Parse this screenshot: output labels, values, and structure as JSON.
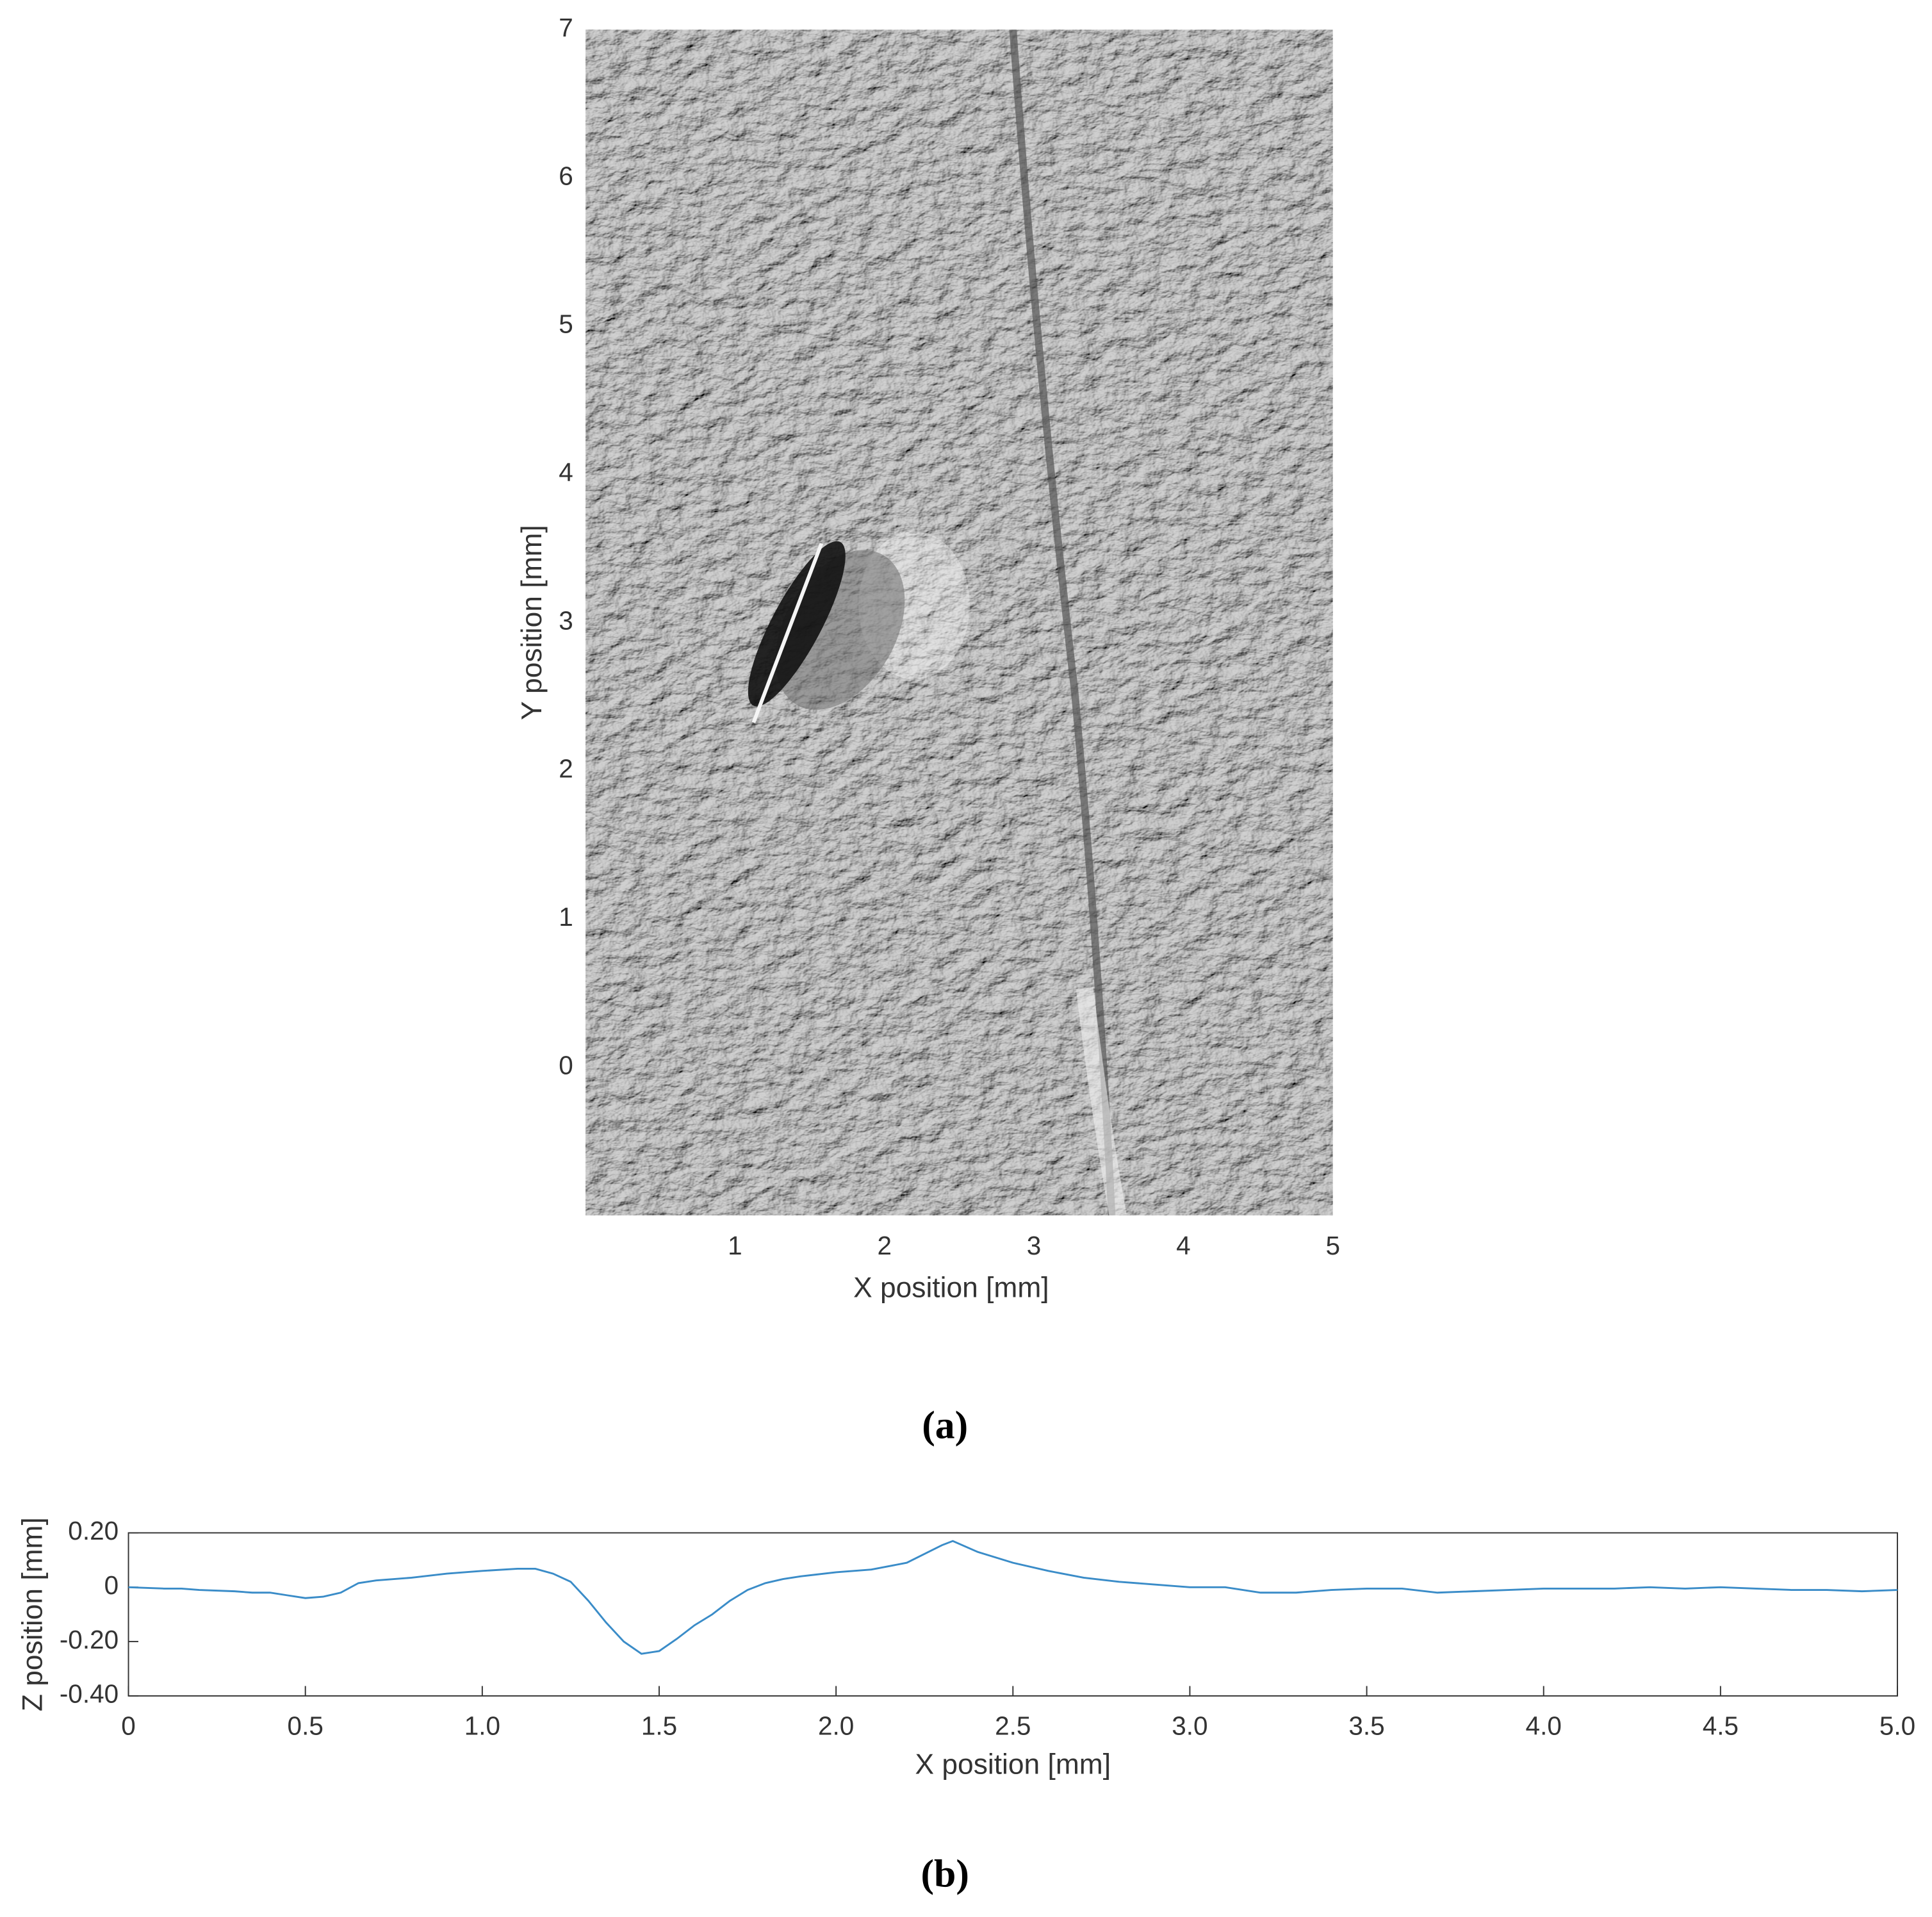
{
  "chart_data": [
    {
      "type": "image",
      "xlabel": "X position [mm]",
      "ylabel": "Y position [mm]",
      "caption": "(a)",
      "xlim": [
        0,
        5
      ],
      "ylim": [
        -1,
        7
      ],
      "xticks": [
        1,
        2,
        3,
        4,
        5
      ],
      "yticks": [
        0,
        1,
        2,
        3,
        4,
        5,
        6,
        7
      ]
    },
    {
      "type": "line",
      "xlabel": "X position [mm]",
      "ylabel": "Z position [mm]",
      "caption": "(b)",
      "color": "#3a8cc8",
      "xlim": [
        0,
        5
      ],
      "ylim": [
        -0.4,
        0.2
      ],
      "xticks": [
        0,
        0.5,
        {
          "value": 1,
          "label": "1.0"
        },
        1.5,
        {
          "value": 2,
          "label": "2.0"
        },
        2.5,
        {
          "value": 3,
          "label": "3.0"
        },
        3.5,
        {
          "value": 4,
          "label": "4.0"
        },
        4.5,
        {
          "value": 5,
          "label": "5.0"
        }
      ],
      "yticks": [
        {
          "value": -0.4,
          "label": "-0.40"
        },
        {
          "value": -0.2,
          "label": "-0.20"
        },
        0,
        {
          "value": 0.2,
          "label": "0.20"
        }
      ],
      "x": [
        0,
        0.1,
        0.15,
        0.2,
        0.3,
        0.35,
        0.4,
        0.45,
        0.5,
        0.55,
        0.6,
        0.65,
        0.7,
        0.8,
        0.9,
        1.0,
        1.1,
        1.15,
        1.2,
        1.25,
        1.3,
        1.35,
        1.4,
        1.45,
        1.5,
        1.55,
        1.6,
        1.65,
        1.7,
        1.75,
        1.8,
        1.85,
        1.9,
        2.0,
        2.1,
        2.2,
        2.3,
        2.33,
        2.4,
        2.5,
        2.6,
        2.7,
        2.8,
        2.9,
        3.0,
        3.1,
        3.2,
        3.3,
        3.4,
        3.5,
        3.6,
        3.7,
        3.8,
        3.9,
        4.0,
        4.1,
        4.2,
        4.3,
        4.4,
        4.5,
        4.6,
        4.7,
        4.8,
        4.9,
        5.0
      ],
      "values": [
        0,
        -0.005,
        -0.005,
        -0.01,
        -0.015,
        -0.02,
        -0.02,
        -0.03,
        -0.04,
        -0.035,
        -0.02,
        0.015,
        0.025,
        0.035,
        0.05,
        0.06,
        0.068,
        0.068,
        0.05,
        0.02,
        -0.05,
        -0.13,
        -0.2,
        -0.245,
        -0.235,
        -0.19,
        -0.14,
        -0.1,
        -0.05,
        -0.01,
        0.015,
        0.03,
        0.04,
        0.055,
        0.065,
        0.09,
        0.155,
        0.17,
        0.13,
        0.09,
        0.06,
        0.035,
        0.02,
        0.01,
        0,
        0,
        -0.02,
        -0.02,
        -0.01,
        -0.005,
        -0.005,
        -0.02,
        -0.015,
        -0.01,
        -0.005,
        -0.005,
        -0.005,
        0,
        -0.005,
        0,
        -0.005,
        -0.01,
        -0.01,
        -0.015,
        -0.01
      ]
    }
  ]
}
